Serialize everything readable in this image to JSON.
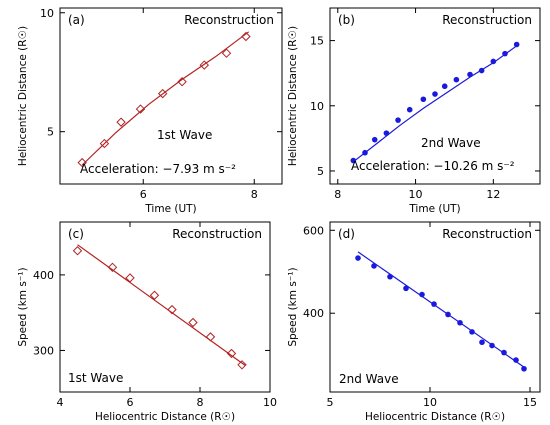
{
  "colors": {
    "first": "#b22222",
    "second": "#1a1adc"
  },
  "chart_data": [
    {
      "panel": "(a)",
      "title": "Reconstruction",
      "type": "scatter",
      "xlabel": "Time (UT)",
      "ylabel": "Heliocentric Distance (R☉)",
      "xlim": [
        4.5,
        8.5
      ],
      "ylim": [
        2.8,
        10.2
      ],
      "xticks": [
        6,
        8
      ],
      "yticks": [
        5,
        10
      ],
      "marker": "diamond-open",
      "color": "first",
      "label": "1st Wave",
      "annotation": "Acceleration: −7.93 m s⁻²",
      "x": [
        4.9,
        5.3,
        5.6,
        5.95,
        6.35,
        6.7,
        7.1,
        7.5,
        7.85
      ],
      "y": [
        3.7,
        4.5,
        5.4,
        5.95,
        6.6,
        7.1,
        7.8,
        8.3,
        9.0
      ],
      "fit_x": [
        4.9,
        5.5,
        6.1,
        6.7,
        7.3,
        7.9
      ],
      "fit_y": [
        3.6,
        4.95,
        6.15,
        7.2,
        8.15,
        9.2
      ]
    },
    {
      "panel": "(b)",
      "title": "Reconstruction",
      "type": "scatter",
      "xlabel": "Time (UT)",
      "ylabel": "Heliocentric Distance (R☉)",
      "xlim": [
        7.8,
        13.2
      ],
      "ylim": [
        4.0,
        17.5
      ],
      "xticks": [
        8,
        10,
        12
      ],
      "yticks": [
        5,
        10,
        15
      ],
      "marker": "filled-circle",
      "color": "second",
      "label": "2nd Wave",
      "annotation": "Acceleration: −10.26 m s⁻²",
      "x": [
        8.4,
        8.7,
        8.95,
        9.25,
        9.55,
        9.85,
        10.2,
        10.5,
        10.75,
        11.05,
        11.4,
        11.7,
        12.0,
        12.3,
        12.6
      ],
      "y": [
        5.8,
        6.4,
        7.4,
        7.9,
        8.9,
        9.7,
        10.5,
        10.9,
        11.5,
        12.0,
        12.4,
        12.7,
        13.4,
        14.0,
        14.7
      ],
      "fit_x": [
        8.4,
        9.0,
        9.6,
        10.2,
        10.8,
        11.4,
        12.0,
        12.6
      ],
      "fit_y": [
        5.7,
        7.1,
        8.5,
        9.8,
        11.0,
        12.2,
        13.3,
        14.6
      ]
    },
    {
      "panel": "(c)",
      "title": "Reconstruction",
      "type": "scatter",
      "xlabel": "Heliocentric Distance (R☉)",
      "ylabel": "Speed (km s⁻¹)",
      "xlim": [
        4.0,
        10.0
      ],
      "ylim": [
        245,
        470
      ],
      "xticks": [
        4,
        6,
        8,
        10
      ],
      "yticks": [
        300,
        400
      ],
      "marker": "diamond-open",
      "color": "first",
      "label": "1st Wave",
      "annotation": "",
      "x": [
        4.5,
        5.5,
        6.0,
        6.7,
        7.2,
        7.8,
        8.3,
        8.9,
        9.2
      ],
      "y": [
        432,
        410,
        396,
        373,
        354,
        337,
        318,
        296,
        281
      ],
      "fit_x": [
        4.5,
        9.3
      ],
      "fit_y": [
        440,
        280
      ]
    },
    {
      "panel": "(d)",
      "title": "Reconstruction",
      "type": "scatter",
      "xlabel": "Heliocentric Distance (R☉)",
      "ylabel": "Speed (km s⁻¹)",
      "xlim": [
        5,
        15.5
      ],
      "ylim": [
        210,
        620
      ],
      "xticks": [
        5,
        10,
        15
      ],
      "yticks": [
        400,
        600
      ],
      "marker": "filled-circle",
      "color": "second",
      "label": "2nd Wave",
      "annotation": "",
      "x": [
        6.4,
        7.2,
        8.0,
        8.8,
        9.6,
        10.2,
        10.9,
        11.5,
        12.1,
        12.6,
        13.1,
        13.7,
        14.3,
        14.7
      ],
      "y": [
        533,
        514,
        488,
        460,
        445,
        422,
        397,
        377,
        355,
        330,
        322,
        305,
        287,
        266
      ],
      "fit_x": [
        6.4,
        14.7
      ],
      "fit_y": [
        548,
        270
      ]
    }
  ]
}
